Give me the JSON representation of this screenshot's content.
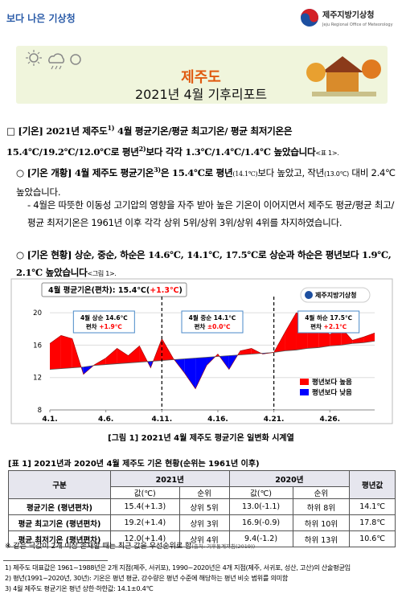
{
  "header": {
    "logo_left": "보다 나은 기상청",
    "logo_right": "제주지방기상청",
    "logo_right_en": "Jeju Regional Office of Meteorology",
    "banner_title": "제주도",
    "banner_subtitle": "2021년 4월 기후리포트"
  },
  "body": {
    "p1": [
      "□",
      "[기온] 2021년 제주도",
      "1)",
      " 4월 평균기온/평균 최고기온/ 평균 최저기온은 15.4℃/19.2℃/12.0℃로 평년",
      "2)",
      "보다 각각 1.3℃/1.4℃/1.4℃ 높았습니다",
      "<표 1>."
    ],
    "p2": [
      "○",
      "[기온 개황] 4월 제주도 평균기온",
      "3)",
      "은 15.4℃로 평년",
      "(14.1℃)",
      "보다 높았고, 작년",
      "(13.0℃)",
      " 대비 2.4℃ 높았습니다."
    ],
    "p3": [
      "-",
      "4월은 따뜻한 이동성 고기압의 영향을 자주 받아 높은 기온이 이어지면서 제주도 평균/평균 최고/평균 최저기온은 1961년 이후 각각 상위 5위/상위 3위/상위 4위를 차지하였습니다."
    ],
    "p4": [
      "○",
      "[기온 현황] 상순, 중순, 하순은 14.6℃, 14.1℃, 17.5℃로 상순과 하순은 평년보다 1.9℃, 2.1℃ 높았습니다",
      "<그림 1>."
    ]
  },
  "chart_data": {
    "type": "area",
    "title": "4월 평균기온(편차): 15.4℃(",
    "title_value": "+1.3℃",
    "title_end": ")",
    "logo_text": "제주지방기상청",
    "categories": [
      "4.1.",
      null,
      null,
      null,
      null,
      "4.6.",
      null,
      null,
      null,
      null,
      "4.11.",
      null,
      null,
      null,
      null,
      "4.16.",
      null,
      null,
      null,
      null,
      "4.21.",
      null,
      null,
      null,
      null,
      "4.26.",
      null,
      null,
      null,
      null
    ],
    "values": [
      16.2,
      17.2,
      16.8,
      12.4,
      13.6,
      14.4,
      15.6,
      14.7,
      15.9,
      13.2,
      16.8,
      14.4,
      12.6,
      10.6,
      13.5,
      14.9,
      13.0,
      15.3,
      15.6,
      14.9,
      15.1,
      17.6,
      20.0,
      19.5,
      18.5,
      17.3,
      18.2,
      16.6,
      17.0,
      17.5
    ],
    "normal_values": [
      13.0,
      13.1,
      13.2,
      13.3,
      13.5,
      13.6,
      13.7,
      13.8,
      13.9,
      14.0,
      14.1,
      14.2,
      14.3,
      14.4,
      14.5,
      14.6,
      14.7,
      14.8,
      14.9,
      15.0,
      15.1,
      15.3,
      15.4,
      15.6,
      15.7,
      15.9,
      16.0,
      16.2,
      16.3,
      16.5
    ],
    "ylim": [
      8,
      21.4
    ],
    "yticks": [
      8,
      12,
      16,
      20
    ],
    "above_color": "#ff0000",
    "below_color": "#0000ff",
    "legend": [
      {
        "name": "평년보다 높음",
        "color": "#ff0000"
      },
      {
        "name": "평년보다 낮음",
        "color": "#0000ff"
      }
    ],
    "annotations": [
      {
        "text": "4월 상순 14.6℃",
        "label": "편차 ",
        "value": "+1.9℃"
      },
      {
        "text": "4월 중순 14.1℃",
        "label": "편차 ",
        "value": "±0.0℃"
      },
      {
        "text": "4월 하순 17.5℃",
        "label": "편차 ",
        "value": "+2.1℃"
      }
    ]
  },
  "figure_caption": "[그림 1] 2021년 4월 제주도 평균기온 일변화 시계열",
  "table": {
    "caption": "[표 1] 2021년과 2020년 4월 제주도 기온 현황(순위는 1961년 이후)",
    "header": [
      "구분",
      "2021년",
      "2020년",
      "평년값"
    ],
    "subheader": [
      "값(℃)",
      "순위",
      "값(℃)",
      "순위"
    ],
    "rows": [
      [
        "평균기온 (평년편차)",
        "15.4(+1.3)",
        "상위 5위",
        "13.0(-1.1)",
        "하위 8위",
        "14.1℃"
      ],
      [
        "평균 최고기온 (평년편차)",
        "19.2(+1.4)",
        "상위 3위",
        "16.9(-0.9)",
        "하위 10위",
        "17.8℃"
      ],
      [
        "평균 최저기온 (평년편차)",
        "12.0(+1.4)",
        "상위 4위",
        "9.4(-1.2)",
        "하위 13위",
        "10.6℃"
      ]
    ],
    "note": "※ 같은 극값이 2개 이상 존재할 때는 최근 값을 우선순위로 함",
    "source": "(출처: 기후통계지침(2019))"
  },
  "footnotes": [
    "1) 제주도 대표값은 1961~1988년은 2개 지점(제주, 서귀포), 1990~2020년은 4개 지점(제주, 서귀포, 성산, 고산)의 산술평균임",
    "2) 평년(1991~2020년, 30년): 기온은 평년 평균, 강수량은 평년 수준에 해당하는 평년 비슷 범위를 의미함",
    "3) 4월 제주도 평균기온 평년 상한·하한값: 14.1±0.4℃"
  ]
}
